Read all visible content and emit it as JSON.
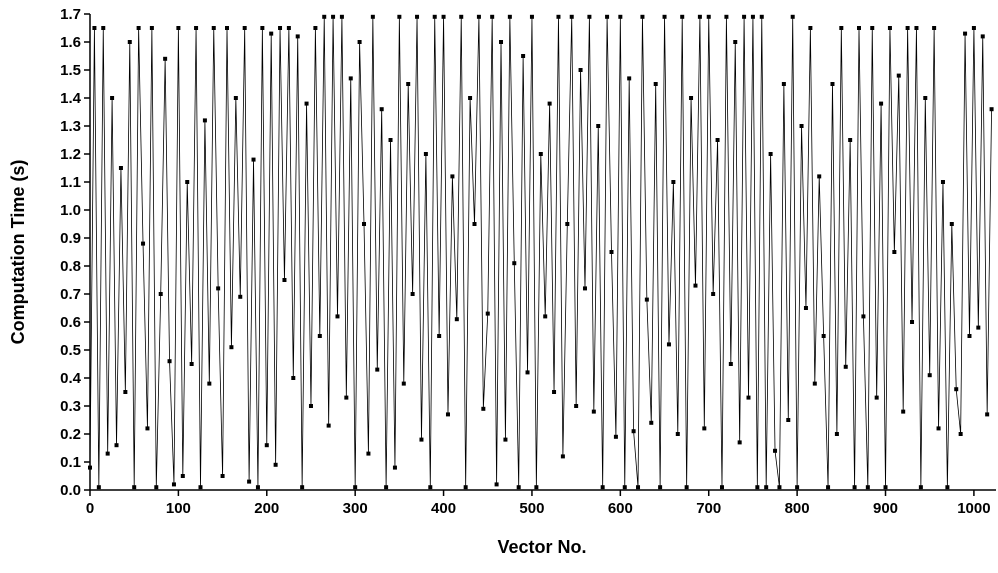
{
  "chart_data": {
    "type": "line",
    "x_label": "Vector No.",
    "y_label": "Computation Time (s)",
    "xlim": [
      0,
      1025
    ],
    "ylim": [
      0,
      1.7
    ],
    "xticks": [
      0,
      100,
      200,
      300,
      400,
      500,
      600,
      700,
      800,
      900,
      1000
    ],
    "yticks": [
      {
        "value": 0,
        "label": "0.0"
      },
      0.1,
      0.2,
      0.3,
      0.4,
      0.5,
      0.6,
      0.7,
      0.8,
      0.9,
      {
        "value": 1,
        "label": "1.0"
      },
      1.1,
      1.2,
      1.3,
      1.4,
      1.5,
      1.6,
      1.7
    ],
    "x": [
      0,
      5,
      10,
      15,
      20,
      25,
      30,
      35,
      40,
      45,
      50,
      55,
      60,
      65,
      70,
      75,
      80,
      85,
      90,
      95,
      100,
      105,
      110,
      115,
      120,
      125,
      130,
      135,
      140,
      145,
      150,
      155,
      160,
      165,
      170,
      175,
      180,
      185,
      190,
      195,
      200,
      205,
      210,
      215,
      220,
      225,
      230,
      235,
      240,
      245,
      250,
      255,
      260,
      265,
      270,
      275,
      280,
      285,
      290,
      295,
      300,
      305,
      310,
      315,
      320,
      325,
      330,
      335,
      340,
      345,
      350,
      355,
      360,
      365,
      370,
      375,
      380,
      385,
      390,
      395,
      400,
      405,
      410,
      415,
      420,
      425,
      430,
      435,
      440,
      445,
      450,
      455,
      460,
      465,
      470,
      475,
      480,
      485,
      490,
      495,
      500,
      505,
      510,
      515,
      520,
      525,
      530,
      535,
      540,
      545,
      550,
      555,
      560,
      565,
      570,
      575,
      580,
      585,
      590,
      595,
      600,
      605,
      610,
      615,
      620,
      625,
      630,
      635,
      640,
      645,
      650,
      655,
      660,
      665,
      670,
      675,
      680,
      685,
      690,
      695,
      700,
      705,
      710,
      715,
      720,
      725,
      730,
      735,
      740,
      745,
      750,
      755,
      760,
      765,
      770,
      775,
      780,
      785,
      790,
      795,
      800,
      805,
      810,
      815,
      820,
      825,
      830,
      835,
      840,
      845,
      850,
      855,
      860,
      865,
      870,
      875,
      880,
      885,
      890,
      895,
      900,
      905,
      910,
      915,
      920,
      925,
      930,
      935,
      940,
      945,
      950,
      955,
      960,
      965,
      970,
      975,
      980,
      985,
      990,
      995,
      1000,
      1005,
      1010,
      1015,
      1020
    ],
    "series": [
      {
        "color": "#000000",
        "values": [
          0.08,
          1.65,
          0.01,
          1.65,
          0.13,
          1.4,
          0.16,
          1.15,
          0.35,
          1.6,
          0.01,
          1.65,
          0.88,
          0.22,
          1.65,
          0.01,
          0.7,
          1.54,
          0.46,
          0.02,
          1.65,
          0.05,
          1.1,
          0.45,
          1.65,
          0.01,
          1.32,
          0.38,
          1.65,
          0.72,
          0.05,
          1.65,
          0.51,
          1.4,
          0.69,
          1.65,
          0.03,
          1.18,
          0.01,
          1.65,
          0.16,
          1.63,
          0.09,
          1.65,
          0.75,
          1.65,
          0.4,
          1.62,
          0.01,
          1.38,
          0.3,
          1.65,
          0.55,
          1.69,
          0.23,
          1.69,
          0.62,
          1.69,
          0.33,
          1.47,
          0.01,
          1.6,
          0.95,
          0.13,
          1.69,
          0.43,
          1.36,
          0.01,
          1.25,
          0.08,
          1.69,
          0.38,
          1.45,
          0.7,
          1.69,
          0.18,
          1.2,
          0.01,
          1.69,
          0.55,
          1.69,
          0.27,
          1.12,
          0.61,
          1.69,
          0.01,
          1.4,
          0.95,
          1.69,
          0.29,
          0.63,
          1.69,
          0.02,
          1.6,
          0.18,
          1.69,
          0.81,
          0.01,
          1.55,
          0.42,
          1.69,
          0.01,
          1.2,
          0.62,
          1.38,
          0.35,
          1.69,
          0.12,
          0.95,
          1.69,
          0.3,
          1.5,
          0.72,
          1.69,
          0.28,
          1.3,
          0.01,
          1.69,
          0.85,
          0.19,
          1.69,
          0.01,
          1.47,
          0.21,
          0.01,
          1.69,
          0.68,
          0.24,
          1.45,
          0.01,
          1.69,
          0.52,
          1.1,
          0.2,
          1.69,
          0.01,
          1.4,
          0.73,
          1.69,
          0.22,
          1.69,
          0.7,
          1.25,
          0.01,
          1.69,
          0.45,
          1.6,
          0.17,
          1.69,
          0.33,
          1.69,
          0.01,
          1.69,
          0.01,
          1.2,
          0.14,
          0.01,
          1.45,
          0.25,
          1.69,
          0.01,
          1.3,
          0.65,
          1.65,
          0.38,
          1.12,
          0.55,
          0.01,
          1.45,
          0.2,
          1.65,
          0.44,
          1.25,
          0.01,
          1.65,
          0.62,
          0.01,
          1.65,
          0.33,
          1.38,
          0.01,
          1.65,
          0.85,
          1.48,
          0.28,
          1.65,
          0.6,
          1.65,
          0.01,
          1.4,
          0.41,
          1.65,
          0.22,
          1.1,
          0.01,
          0.95,
          0.36,
          0.2,
          1.63,
          0.55,
          1.65,
          0.58,
          1.62,
          0.27,
          1.36
        ]
      }
    ]
  }
}
